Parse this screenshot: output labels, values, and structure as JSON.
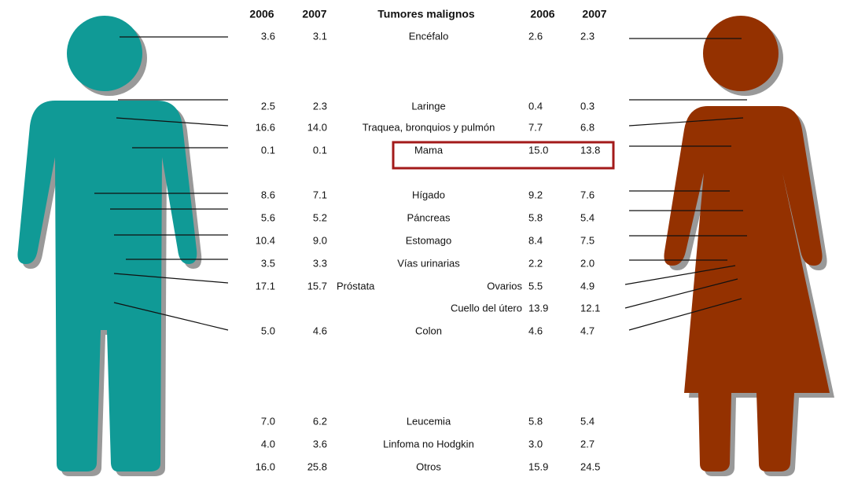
{
  "header": {
    "male_2006": "2006",
    "male_2007": "2007",
    "title": "Tumores malignos",
    "female_2006": "2006",
    "female_2007": "2007"
  },
  "rows": [
    {
      "male_2006": "3.6",
      "male_2007": "3.1",
      "label": "Encéfalo",
      "female_2006": "2.6",
      "female_2007": "2.3"
    },
    {
      "male_2006": "2.5",
      "male_2007": "2.3",
      "label": "Laringe",
      "female_2006": "0.4",
      "female_2007": "0.3"
    },
    {
      "male_2006": "16.6",
      "male_2007": "14.0",
      "label": "Traquea, bronquios y pulmón",
      "female_2006": "7.7",
      "female_2007": "6.8"
    },
    {
      "male_2006": "0.1",
      "male_2007": "0.1",
      "label": "Mama",
      "female_2006": "15.0",
      "female_2007": "13.8"
    },
    {
      "male_2006": "8.6",
      "male_2007": "7.1",
      "label": "Hígado",
      "female_2006": "9.2",
      "female_2007": "7.6"
    },
    {
      "male_2006": "5.6",
      "male_2007": "5.2",
      "label": "Páncreas",
      "female_2006": "5.8",
      "female_2007": "5.4"
    },
    {
      "male_2006": "10.4",
      "male_2007": "9.0",
      "label": "Estomago",
      "female_2006": "8.4",
      "female_2007": "7.5"
    },
    {
      "male_2006": "3.5",
      "male_2007": "3.3",
      "label": "Vías urinarias",
      "female_2006": "2.2",
      "female_2007": "2.0"
    },
    {
      "male_2006": "17.1",
      "male_2007": "15.7",
      "male_label": "Próstata",
      "female_label": "Ovarios",
      "female_2006": "5.5",
      "female_2007": "4.9"
    },
    {
      "female_label": "Cuello del útero",
      "female_2006": "13.9",
      "female_2007": "12.1"
    },
    {
      "male_2006": "5.0",
      "male_2007": "4.6",
      "label": "Colon",
      "female_2006": "4.6",
      "female_2007": "4.7"
    },
    {
      "male_2006": "7.0",
      "male_2007": "6.2",
      "label": "Leucemia",
      "female_2006": "5.8",
      "female_2007": "5.4"
    },
    {
      "male_2006": "4.0",
      "male_2007": "3.6",
      "label": "Linfoma no Hodgkin",
      "female_2006": "3.0",
      "female_2007": "2.7"
    },
    {
      "male_2006": "16.0",
      "male_2007": "25.8",
      "label": "Otros",
      "female_2006": "15.9",
      "female_2007": "24.5"
    }
  ]
}
